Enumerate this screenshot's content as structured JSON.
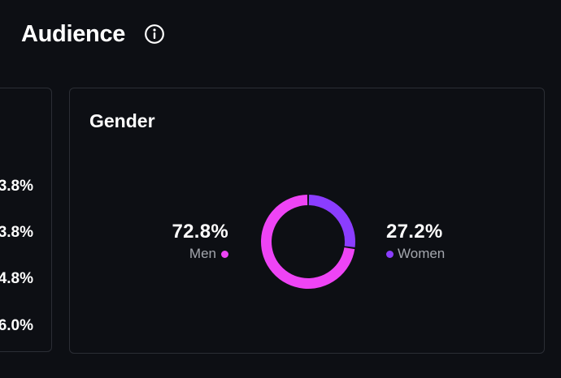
{
  "page": {
    "title": "Audience",
    "info_icon": "info-icon"
  },
  "left_card": {
    "values": [
      "3.8%",
      "3.8%",
      "4.8%",
      "6.0%"
    ]
  },
  "gender_card": {
    "title": "Gender"
  },
  "chart_data": {
    "type": "pie",
    "style": "donut",
    "labels": [
      "Men",
      "Women"
    ],
    "values": [
      72.8,
      27.2
    ],
    "value_labels": [
      "72.8%",
      "27.2%"
    ],
    "colors": [
      "#ee44f5",
      "#8b3dff"
    ],
    "title": "Gender"
  }
}
